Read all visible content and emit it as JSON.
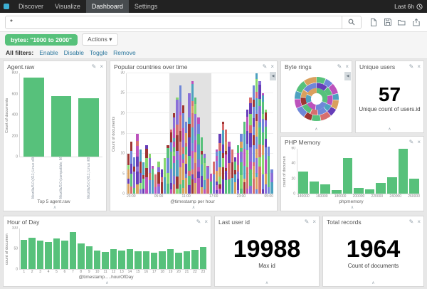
{
  "navbar": {
    "items": [
      {
        "label": "Discover",
        "active": false
      },
      {
        "label": "Visualize",
        "active": false
      },
      {
        "label": "Dashboard",
        "active": true
      },
      {
        "label": "Settings",
        "active": false
      }
    ],
    "time_label": "Last 6h",
    "time_icon": "clock-icon"
  },
  "search": {
    "value": "*",
    "search_icon": "magnifier-icon",
    "toolbar_icons": [
      "new-document-icon",
      "save-icon",
      "open-folder-icon",
      "share-icon"
    ]
  },
  "filter_bar": {
    "pill_label": "bytes: \"1000 to 2000\"",
    "actions_label": "Actions ▾"
  },
  "filters_row": {
    "label": "All filters:",
    "links": [
      "Enable",
      "Disable",
      "Toggle",
      "Remove"
    ]
  },
  "colors": {
    "accent_green": "#57c17b",
    "navbar_bg": "#222222",
    "link_blue": "#2d789e",
    "panel_border": "#d8d8d8",
    "selection_band": "#e2e2e2"
  },
  "chart_data": [
    {
      "id": "agent_raw",
      "type": "bar",
      "title": "Agent.raw",
      "ylabel": "Count of documents",
      "xlabel": "Top 5 agent.raw",
      "ylim": [
        0,
        800
      ],
      "yticks": [
        0,
        200,
        400,
        600,
        800
      ],
      "categories": [
        "Mozilla/5.0 (X11; Linux x86_64; rv:6.0a1) Gecko",
        "Mozilla/5.0 (compatible; MSIE 6.0; Windows NT 5.1)",
        "Mozilla/5.0 (X11; Linux i686) AppleWebKit/534.24"
      ],
      "values": [
        760,
        580,
        560
      ]
    },
    {
      "id": "popular_countries",
      "type": "stacked-bar",
      "title": "Popular countries over time",
      "ylabel": "Count of documents",
      "xlabel": "@timestamp per hour",
      "ylim": [
        0,
        30
      ],
      "yticks": [
        0,
        5,
        10,
        15,
        20,
        25,
        30
      ],
      "x_tick_labels": [
        "23:00",
        "05:00",
        "11:00",
        "17:00",
        "23:00",
        "05:00"
      ],
      "bar_totals": [
        10,
        13,
        9,
        15,
        11,
        8,
        12,
        10,
        7,
        5,
        8,
        6,
        9,
        12,
        16,
        20,
        24,
        27,
        22,
        18,
        25,
        28,
        24,
        19,
        14,
        10,
        7,
        5,
        8,
        11,
        15,
        18,
        16,
        13,
        11,
        9,
        12,
        15,
        18,
        21,
        24,
        27,
        30,
        28,
        25,
        21,
        12,
        6
      ],
      "selection_band": [
        0.29,
        0.58
      ],
      "palette": [
        "#57c17b",
        "#6f87d8",
        "#663db8",
        "#bc52bc",
        "#9e3533",
        "#daa05d",
        "#4da1c0",
        "#d76e6e",
        "#87d86f",
        "#8a6fd8"
      ]
    },
    {
      "id": "byte_rings",
      "type": "donut",
      "title": "Byte rings",
      "rings": [
        {
          "r": 13,
          "w": 8,
          "slices": [
            [
              0.32,
              "#57c17b"
            ],
            [
              0.2,
              "#6f87d8"
            ],
            [
              0.16,
              "#bc52bc"
            ],
            [
              0.14,
              "#4da1c0"
            ],
            [
              0.18,
              "#daa05d"
            ]
          ]
        },
        {
          "r": 21,
          "w": 8,
          "slices": [
            [
              0.12,
              "#663db8"
            ],
            [
              0.09,
              "#57c17b"
            ],
            [
              0.11,
              "#bc52bc"
            ],
            [
              0.07,
              "#4da1c0"
            ],
            [
              0.1,
              "#6f87d8"
            ],
            [
              0.08,
              "#d76e6e"
            ],
            [
              0.11,
              "#57c17b"
            ],
            [
              0.09,
              "#9e3533"
            ],
            [
              0.08,
              "#daa05d"
            ],
            [
              0.15,
              "#6f87d8"
            ]
          ]
        },
        {
          "r": 30,
          "w": 9,
          "slices": [
            [
              0.07,
              "#57c17b"
            ],
            [
              0.06,
              "#6f87d8"
            ],
            [
              0.08,
              "#bc52bc"
            ],
            [
              0.05,
              "#4da1c0"
            ],
            [
              0.07,
              "#daa05d"
            ],
            [
              0.06,
              "#663db8"
            ],
            [
              0.08,
              "#d76e6e"
            ],
            [
              0.07,
              "#57c17b"
            ],
            [
              0.06,
              "#9e3533"
            ],
            [
              0.08,
              "#6f87d8"
            ],
            [
              0.07,
              "#bc52bc"
            ],
            [
              0.06,
              "#4da1c0"
            ],
            [
              0.09,
              "#57c17b"
            ],
            [
              0.1,
              "#daa05d"
            ]
          ]
        }
      ]
    },
    {
      "id": "unique_users",
      "type": "metric",
      "title": "Unique users",
      "value": "57",
      "label": "Unique count of users.id"
    },
    {
      "id": "php_memory",
      "type": "bar",
      "title": "PHP Memory",
      "ylabel": "count of documen",
      "xlabel": "phpmemory",
      "ylim": [
        0,
        60
      ],
      "yticks": [
        0,
        20,
        40,
        60
      ],
      "x_tick_labels": [
        "140000",
        "160000",
        "180000",
        "200000",
        "220000",
        "240000",
        "260000"
      ],
      "values": [
        30,
        16,
        12,
        5,
        48,
        8,
        6,
        14,
        22,
        60,
        20
      ]
    },
    {
      "id": "hour_of_day",
      "type": "bar",
      "title": "Hour of Day",
      "ylabel": "count of documen",
      "xlabel": "@timestamp.....hourOfDay",
      "ylim": [
        0,
        100
      ],
      "yticks": [
        0,
        50,
        100
      ],
      "categories": [
        "1",
        "2",
        "3",
        "4",
        "5",
        "6",
        "7",
        "8",
        "9",
        "10",
        "11",
        "12",
        "13",
        "14",
        "15",
        "16",
        "17",
        "18",
        "19",
        "20",
        "21",
        "22",
        "23"
      ],
      "values": [
        72,
        78,
        70,
        66,
        76,
        70,
        92,
        64,
        56,
        46,
        42,
        50,
        46,
        50,
        44,
        44,
        40,
        44,
        50,
        40,
        44,
        48,
        54
      ]
    },
    {
      "id": "last_user_id",
      "type": "metric",
      "title": "Last user id",
      "value": "19988",
      "label": "Max id"
    },
    {
      "id": "total_records",
      "type": "metric",
      "title": "Total records",
      "value": "1964",
      "label": "Count of documents"
    }
  ]
}
